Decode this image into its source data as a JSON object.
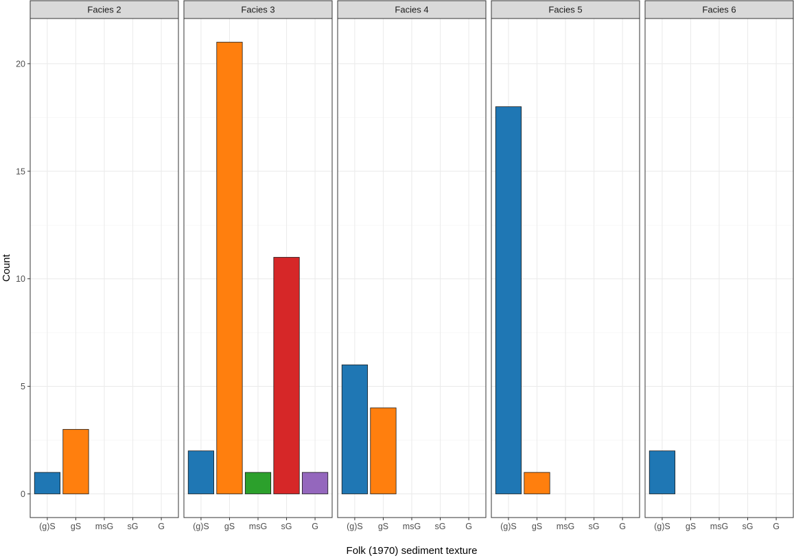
{
  "chart_data": {
    "type": "bar",
    "xlabel": "Folk (1970) sediment texture",
    "ylabel": "Count",
    "categories": [
      "(g)S",
      "gS",
      "msG",
      "sG",
      "G"
    ],
    "category_colors": [
      "#1f77b4",
      "#ff7f0e",
      "#2ca02c",
      "#d62728",
      "#9467bd"
    ],
    "ylim": [
      -1.1,
      22.1
    ],
    "yticks": [
      0,
      5,
      10,
      15,
      20
    ],
    "grid": true,
    "legend": "none",
    "facets": [
      {
        "name": "Facies 2",
        "values": [
          1,
          3,
          0,
          0,
          0
        ]
      },
      {
        "name": "Facies 3",
        "values": [
          2,
          21,
          1,
          11,
          1
        ]
      },
      {
        "name": "Facies 4",
        "values": [
          6,
          4,
          0,
          0,
          0
        ]
      },
      {
        "name": "Facies 5",
        "values": [
          18,
          1,
          0,
          0,
          0
        ]
      },
      {
        "name": "Facies 6",
        "values": [
          2,
          0,
          0,
          0,
          0
        ]
      }
    ]
  }
}
